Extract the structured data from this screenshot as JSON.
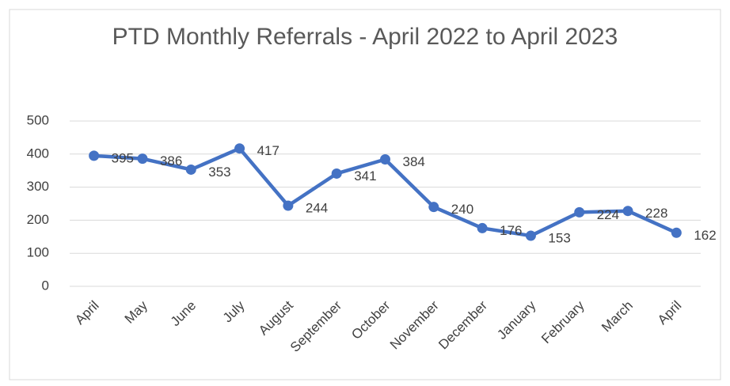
{
  "chart_data": {
    "type": "line",
    "title": "PTD Monthly Referrals - April 2022 to April 2023",
    "categories": [
      "April",
      "May",
      "June",
      "July",
      "August",
      "September",
      "October",
      "November",
      "December",
      "January",
      "February",
      "March",
      "April"
    ],
    "series": [
      {
        "name": "Referrals",
        "color": "#4472c4",
        "values": [
          395,
          386,
          353,
          417,
          244,
          341,
          384,
          240,
          176,
          153,
          224,
          228,
          162
        ]
      }
    ],
    "ylim": [
      0,
      500
    ],
    "yticks": [
      0,
      100,
      200,
      300,
      400,
      500
    ],
    "grid": true,
    "data_labels": true,
    "legend": false
  }
}
